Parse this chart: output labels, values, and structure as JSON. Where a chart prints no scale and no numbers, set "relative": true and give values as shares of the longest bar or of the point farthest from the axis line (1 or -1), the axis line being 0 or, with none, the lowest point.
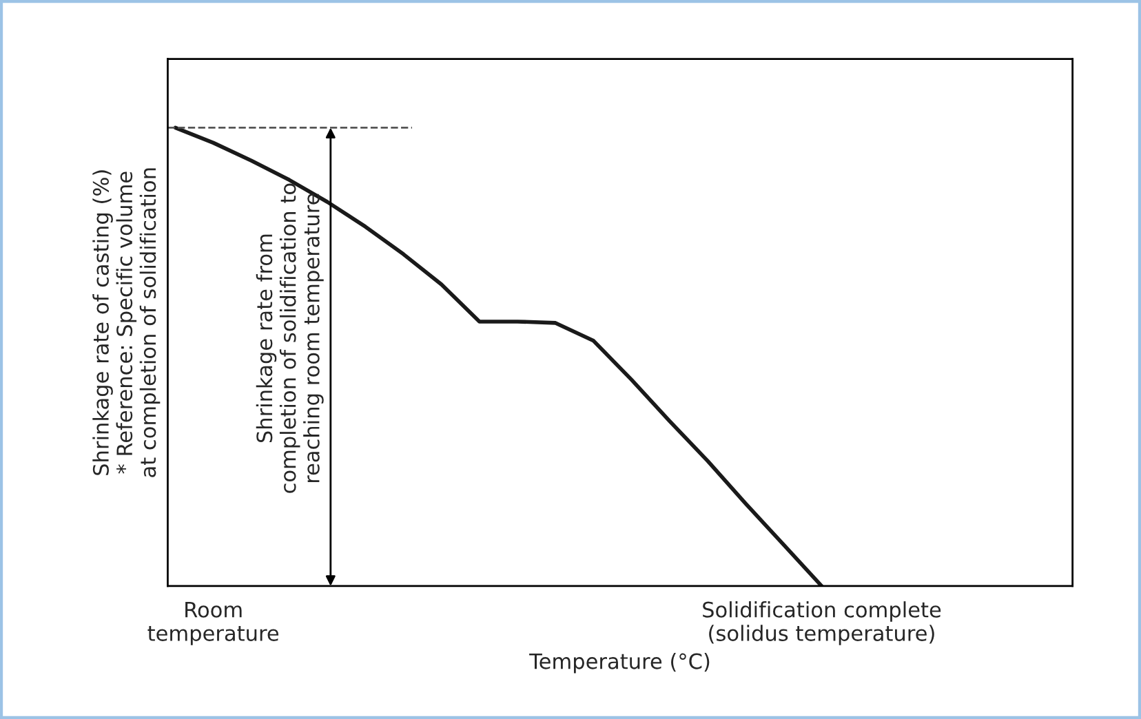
{
  "chart_data": {
    "type": "line",
    "relative": true,
    "xlabel": "Temperature (°C)",
    "ylabel": "Shrinkage rate of casting (%)\n* Reference: Specific volume\nat completion of solidification",
    "categories": [
      null,
      "Room\ntemperature",
      null,
      null,
      null,
      null,
      null,
      null,
      null,
      null,
      null,
      null,
      null,
      null,
      null,
      null,
      null,
      "Solidification complete\n(solidus temperature)",
      null,
      null,
      null,
      null,
      null,
      null
    ],
    "series": [
      {
        "color": "#1a1a1a",
        "values": [
          1.0,
          0.967,
          0.928,
          0.886,
          0.838,
          0.784,
          0.724,
          0.658,
          0.577,
          0.577,
          0.574,
          0.535,
          0.45,
          0.36,
          0.273,
          0.18,
          0.09,
          0.0,
          null,
          null,
          null,
          null,
          null,
          null
        ]
      }
    ],
    "ref_lines": [
      {
        "axis": "y",
        "value": 1.0,
        "label": null,
        "color": "#555555",
        "line_style": "dashed"
      }
    ],
    "annotations": [
      "Shrinkage rate from\ncompletion of solidification to\nreaching room temperature"
    ],
    "grid": false,
    "marker": "none",
    "line_style": "solid"
  }
}
